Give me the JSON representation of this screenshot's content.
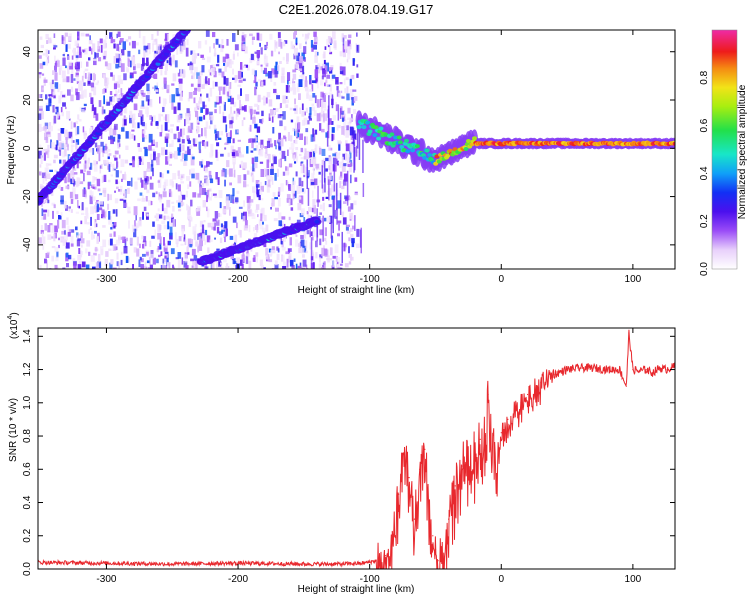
{
  "figure": {
    "title": "C2E1.2026.078.04.19.G17"
  },
  "chart_data": [
    {
      "type": "heatmap",
      "name": "spectrogram",
      "title": "C2E1.2026.078.04.19.G17",
      "xlabel": "Height of straight line (km)",
      "ylabel": "Frequency (Hz)",
      "xlim": [
        -352,
        132
      ],
      "ylim": [
        -50,
        49
      ],
      "xticks": [
        -300,
        -200,
        -100,
        0,
        100
      ],
      "xtick_labels": [
        "-300",
        "-200",
        "-100",
        "0",
        "100"
      ],
      "yticks": [
        40,
        20,
        0,
        -20,
        -40
      ],
      "ytick_labels": [
        "40",
        "20",
        "0",
        "-20",
        "-40"
      ],
      "colorbar": {
        "label": "Normalized spectral amplitude",
        "range": [
          0,
          1
        ],
        "ticks": [
          0.0,
          0.2,
          0.4,
          0.6,
          0.8
        ],
        "tick_labels": [
          "0.0",
          "0.2",
          "0.4",
          "0.6",
          "0.8"
        ]
      },
      "features": [
        {
          "name": "rising-tone-main",
          "x": [
            -352,
            -238
          ],
          "freq": [
            -22,
            50
          ],
          "amplitude": 0.35
        },
        {
          "name": "rising-tone-lower",
          "x": [
            -228,
            -140
          ],
          "freq": [
            -47,
            -30
          ],
          "amplitude": 0.4
        },
        {
          "name": "noise-band",
          "x": [
            -352,
            -110
          ],
          "freq": [
            -50,
            49
          ],
          "amplitude": 0.1
        },
        {
          "name": "carrier-line",
          "x": [
            -108,
            132
          ],
          "freq_start": 10,
          "freq_end": 2,
          "amplitude": 0.9
        }
      ]
    },
    {
      "type": "line",
      "name": "snr",
      "xlabel": "Height of straight line (km)",
      "ylabel": "SNR (10 * v/v)",
      "y_scale_label": "(x10",
      "y_scale_exponent": "4",
      "xlim": [
        -352,
        132
      ],
      "ylim": [
        0,
        1.45
      ],
      "xticks": [
        -300,
        -200,
        -100,
        0,
        100
      ],
      "xtick_labels": [
        "-300",
        "-200",
        "-100",
        "0",
        "100"
      ],
      "yticks": [
        0.0,
        0.2,
        0.4,
        0.6,
        0.8,
        1.0,
        1.2,
        1.4
      ],
      "ytick_labels": [
        "0.0",
        "0.2",
        "0.4",
        "0.6",
        "0.8",
        "1.0",
        "1.2",
        "1.4"
      ],
      "color": "#e8282d",
      "series": [
        {
          "name": "SNR",
          "x": [
            -352,
            -300,
            -250,
            -200,
            -150,
            -120,
            -105,
            -95,
            -88,
            -82,
            -78,
            -74,
            -70,
            -66,
            -62,
            -58,
            -55,
            -52,
            -50,
            -48,
            -45,
            -40,
            -35,
            -30,
            -25,
            -20,
            -16,
            -12,
            -10,
            -8,
            -5,
            0,
            5,
            10,
            15,
            20,
            30,
            40,
            50,
            60,
            70,
            80,
            90,
            95,
            97,
            100,
            105,
            110,
            115,
            120,
            125,
            132
          ],
          "y": [
            0.04,
            0.035,
            0.03,
            0.035,
            0.03,
            0.03,
            0.035,
            0.05,
            0.08,
            0.2,
            0.45,
            0.7,
            0.55,
            0.3,
            0.6,
            0.72,
            0.4,
            0.2,
            0.12,
            0.05,
            0.1,
            0.3,
            0.5,
            0.62,
            0.65,
            0.7,
            0.78,
            0.8,
            1.05,
            0.8,
            0.7,
            0.82,
            0.9,
            0.95,
            1.0,
            1.05,
            1.12,
            1.17,
            1.2,
            1.21,
            1.21,
            1.2,
            1.2,
            1.1,
            1.42,
            1.2,
            1.19,
            1.2,
            1.18,
            1.21,
            1.2,
            1.22
          ]
        }
      ]
    }
  ]
}
